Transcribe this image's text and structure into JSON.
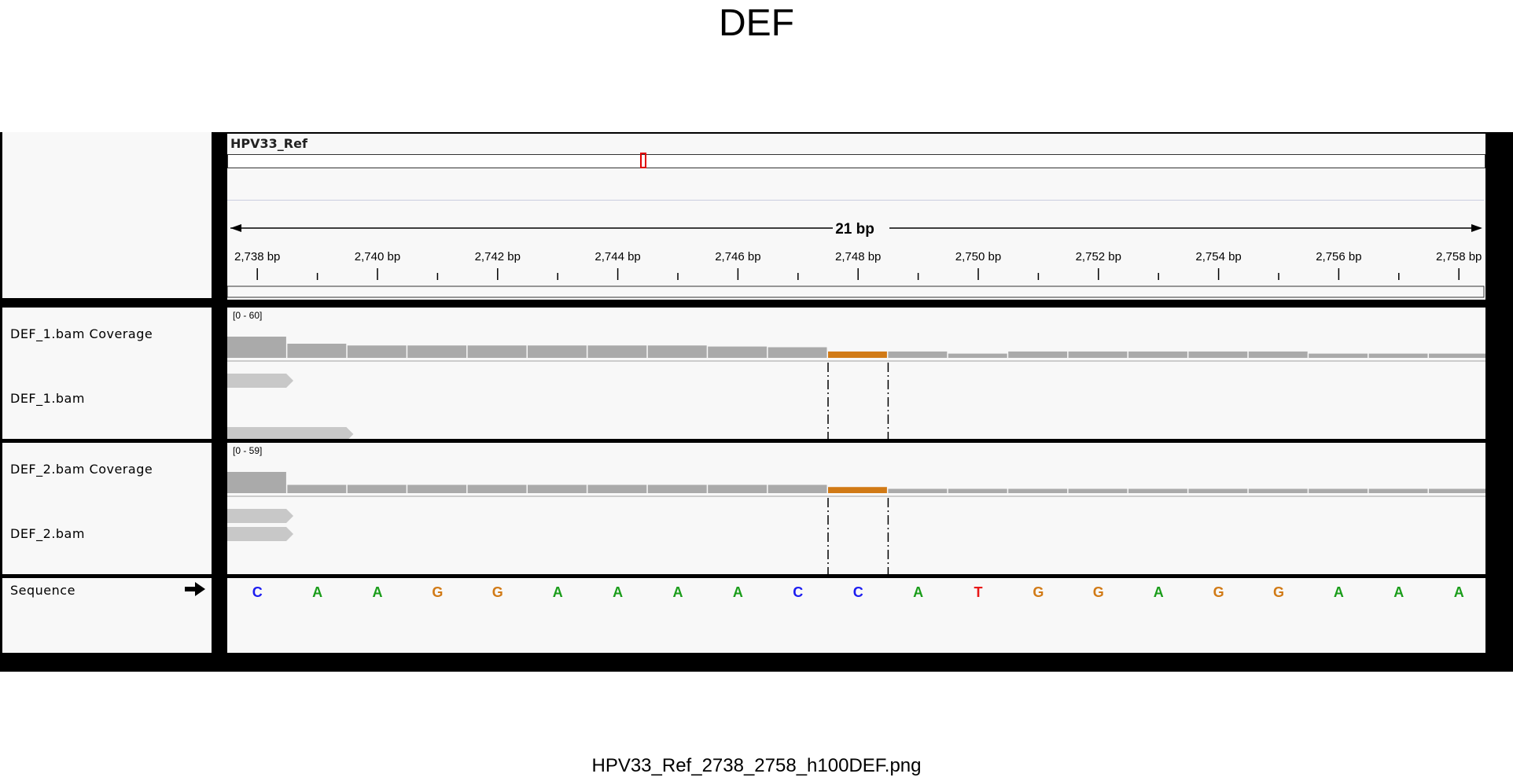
{
  "page_title": "DEF",
  "footer_filename": "HPV33_Ref_2738_2758_h100DEF.png",
  "ruler": {
    "chromosome": "HPV33_Ref",
    "span_label": "21 bp",
    "ticks": [
      "2,738 bp",
      "2,740 bp",
      "2,742 bp",
      "2,744 bp",
      "2,746 bp",
      "2,748 bp",
      "2,750 bp",
      "2,752 bp",
      "2,754 bp",
      "2,756 bp",
      "2,758 bp"
    ]
  },
  "tracks": [
    {
      "name": "DEF_1.bam Coverage",
      "range": "[0 - 60]",
      "coverage": [
        60,
        40,
        35,
        35,
        35,
        35,
        35,
        35,
        32,
        30,
        18,
        18,
        12,
        18,
        18,
        18,
        18,
        18,
        12,
        12,
        12
      ],
      "max": 60,
      "highlight_index": 10
    },
    {
      "name": "DEF_1.bam",
      "reads": [
        {
          "start": 0,
          "end": 1.1,
          "row": 0
        },
        {
          "start": 0,
          "end": 2.1,
          "row": 1
        }
      ]
    },
    {
      "name": "DEF_2.bam Coverage",
      "range": "[0 - 59]",
      "coverage": [
        59,
        23,
        23,
        23,
        23,
        23,
        23,
        23,
        23,
        23,
        17,
        12,
        12,
        12,
        12,
        12,
        12,
        12,
        12,
        12,
        12
      ],
      "max": 59,
      "highlight_index": 10
    },
    {
      "name": "DEF_2.bam",
      "reads": [
        {
          "start": 0,
          "end": 1.1,
          "row": 0
        },
        {
          "start": 0,
          "end": 1.1,
          "row": 1
        }
      ]
    }
  ],
  "sequence": {
    "label": "Sequence",
    "bases": [
      "C",
      "A",
      "A",
      "G",
      "G",
      "A",
      "A",
      "A",
      "A",
      "C",
      "C",
      "A",
      "T",
      "G",
      "G",
      "A",
      "G",
      "G",
      "A",
      "A",
      "A"
    ]
  },
  "colors": {
    "A": "#1a9d1a",
    "C": "#1c1cf0",
    "G": "#d17a16",
    "T": "#e81818",
    "coverage": "#aaaaaa",
    "highlight": "#d17a16",
    "read": "#c8c8c8"
  }
}
